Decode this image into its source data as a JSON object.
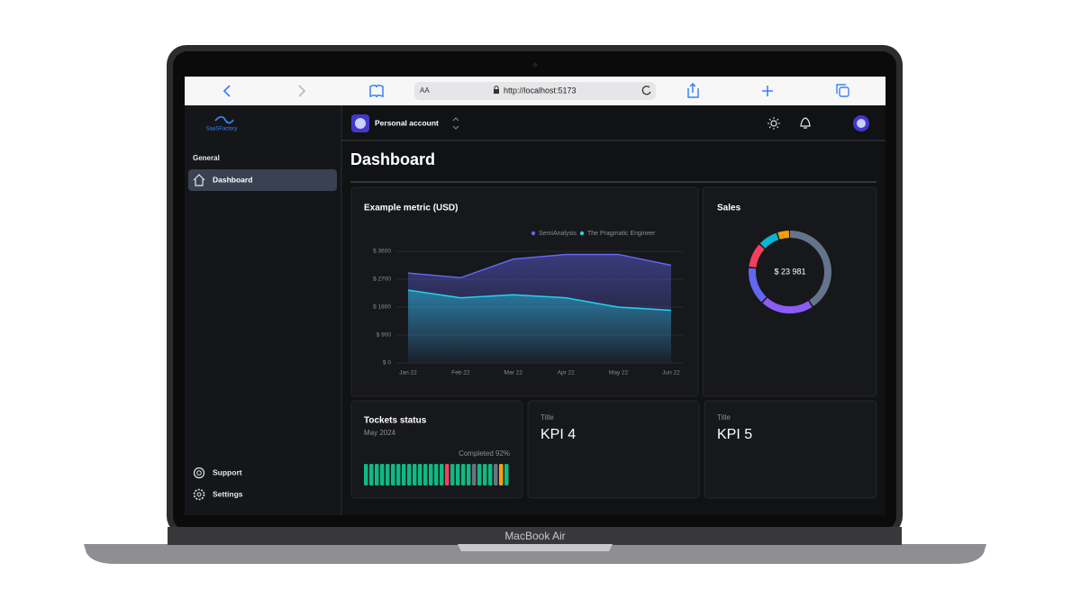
{
  "browser": {
    "text_size": "AA",
    "url": "http://localhost:5173"
  },
  "sidebar": {
    "logo": "SaaSFactory",
    "section": "General",
    "nav": [
      "Dashboard"
    ],
    "footer": [
      "Support",
      "Settings"
    ]
  },
  "topbar": {
    "account": "Personal account"
  },
  "page_title": "Dashboard",
  "metric_chart": {
    "type": "area",
    "title": "Example metric (USD)",
    "x": [
      "Jan 22",
      "Feb 22",
      "Mar 22",
      "Apr 22",
      "May 22",
      "Jun 22"
    ],
    "series": [
      {
        "name": "SemiAnalysis",
        "color": "#6366f1",
        "values": [
          2900,
          2750,
          3350,
          3500,
          3500,
          3150
        ]
      },
      {
        "name": "The Pragmatic Engineer",
        "color": "#22d3ee",
        "values": [
          2350,
          2100,
          2200,
          2100,
          1800,
          1700
        ]
      }
    ],
    "ylim": [
      0,
      3600
    ],
    "yticks": [
      {
        "value": 0,
        "label": "$ 0"
      },
      {
        "value": 900,
        "label": "$ 900"
      },
      {
        "value": 1800,
        "label": "$ 1800"
      },
      {
        "value": 2700,
        "label": "$ 2700"
      },
      {
        "value": 3600,
        "label": "$ 3600"
      }
    ],
    "grid": true
  },
  "sales": {
    "type": "pie",
    "title": "Sales",
    "center_label": "$ 23 981",
    "values": [
      41,
      21,
      15,
      10,
      8,
      5
    ],
    "colors": [
      "#64748b",
      "#8b5cf6",
      "#6366f1",
      "#f43f5e",
      "#06b6d4",
      "#f59e0b"
    ]
  },
  "tickets": {
    "title": "Tockets status",
    "subtitle": "May 2024",
    "completed": "Completed 92%",
    "segment_colors": [
      "#10b981",
      "#10b981",
      "#10b981",
      "#10b981",
      "#10b981",
      "#10b981",
      "#10b981",
      "#10b981",
      "#10b981",
      "#10b981",
      "#10b981",
      "#10b981",
      "#10b981",
      "#10b981",
      "#10b981",
      "#f43f5e",
      "#10b981",
      "#10b981",
      "#10b981",
      "#10b981",
      "#6b7280",
      "#10b981",
      "#10b981",
      "#10b981",
      "#6b7280",
      "#f59e0b",
      "#10b981"
    ]
  },
  "kpis": [
    {
      "label": "Title",
      "value": "KPI 4"
    },
    {
      "label": "Title",
      "value": "KPI 5"
    }
  ],
  "device": "MacBook Air"
}
